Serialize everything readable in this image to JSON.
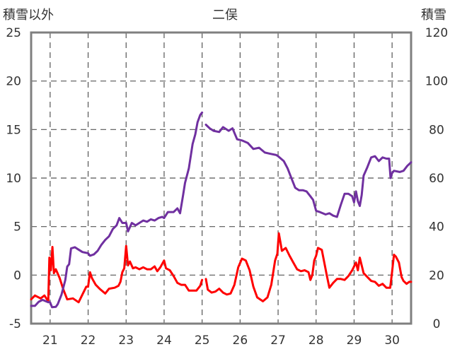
{
  "chart_data": {
    "type": "line",
    "title": "二俣",
    "ylabel_left": "積雪以外",
    "ylabel_right": "積雪",
    "x_ticks": [
      21,
      22,
      23,
      24,
      25,
      26,
      27,
      28,
      29,
      30
    ],
    "x_range": [
      20.5,
      30.5
    ],
    "y_left_range": [
      -5,
      25
    ],
    "y_left_ticks": [
      -5,
      0,
      5,
      10,
      15,
      20,
      25
    ],
    "y_right_range": [
      0,
      120
    ],
    "y_right_ticks": [
      0,
      20,
      40,
      60,
      80,
      100,
      120
    ],
    "grid": "dashed vertical at each day, dashed horizontal at 5-unit steps",
    "series": [
      {
        "axis": "left",
        "color": "#ff0000",
        "points": [
          [
            20.5,
            -2.5
          ],
          [
            20.6,
            -2.1
          ],
          [
            20.75,
            -2.4
          ],
          [
            20.85,
            -2.1
          ],
          [
            20.95,
            -2.7
          ],
          [
            20.98,
            1.8
          ],
          [
            21.02,
            0.5
          ],
          [
            21.06,
            2.9
          ],
          [
            21.1,
            0.2
          ],
          [
            21.15,
            0.6
          ],
          [
            21.25,
            -0.3
          ],
          [
            21.35,
            -1.5
          ],
          [
            21.45,
            -2.5
          ],
          [
            21.6,
            -2.4
          ],
          [
            21.75,
            -2.8
          ],
          [
            21.85,
            -2.0
          ],
          [
            21.95,
            -1.2
          ],
          [
            22.0,
            -1.2
          ],
          [
            22.05,
            0.3
          ],
          [
            22.1,
            -0.3
          ],
          [
            22.2,
            -1.0
          ],
          [
            22.3,
            -1.4
          ],
          [
            22.45,
            -1.9
          ],
          [
            22.55,
            -1.4
          ],
          [
            22.7,
            -1.3
          ],
          [
            22.8,
            -1.1
          ],
          [
            22.85,
            -0.7
          ],
          [
            22.9,
            0.3
          ],
          [
            22.95,
            0.7
          ],
          [
            23.0,
            3.0
          ],
          [
            23.05,
            1.0
          ],
          [
            23.1,
            1.4
          ],
          [
            23.18,
            0.7
          ],
          [
            23.25,
            0.8
          ],
          [
            23.35,
            0.6
          ],
          [
            23.45,
            0.8
          ],
          [
            23.55,
            0.6
          ],
          [
            23.65,
            0.6
          ],
          [
            23.75,
            0.9
          ],
          [
            23.82,
            0.4
          ],
          [
            23.9,
            0.8
          ],
          [
            24.0,
            1.5
          ],
          [
            24.05,
            0.7
          ],
          [
            24.15,
            0.5
          ],
          [
            24.25,
            -0.1
          ],
          [
            24.35,
            -0.8
          ],
          [
            24.45,
            -1.0
          ],
          [
            24.55,
            -1.0
          ],
          [
            24.65,
            -1.6
          ],
          [
            24.75,
            -1.6
          ],
          [
            24.85,
            -1.6
          ],
          [
            24.95,
            -1.1
          ],
          [
            25.0,
            -0.5
          ],
          null,
          [
            25.1,
            -0.4
          ],
          [
            25.15,
            -1.5
          ],
          [
            25.25,
            -1.8
          ],
          [
            25.35,
            -1.7
          ],
          [
            25.45,
            -1.4
          ],
          [
            25.55,
            -1.8
          ],
          [
            25.65,
            -2.0
          ],
          [
            25.75,
            -1.9
          ],
          [
            25.85,
            -1.0
          ],
          [
            25.95,
            0.8
          ],
          [
            26.05,
            1.7
          ],
          [
            26.15,
            1.5
          ],
          [
            26.25,
            0.5
          ],
          [
            26.35,
            -1.2
          ],
          [
            26.45,
            -2.3
          ],
          [
            26.6,
            -2.7
          ],
          [
            26.72,
            -2.3
          ],
          [
            26.82,
            -1.0
          ],
          [
            26.92,
            1.5
          ],
          [
            26.98,
            2.2
          ],
          [
            27.02,
            4.3
          ],
          [
            27.06,
            3.4
          ],
          [
            27.1,
            2.5
          ],
          [
            27.2,
            2.8
          ],
          [
            27.3,
            2.0
          ],
          [
            27.4,
            1.3
          ],
          [
            27.5,
            0.6
          ],
          [
            27.6,
            0.4
          ],
          [
            27.7,
            0.5
          ],
          [
            27.8,
            0.3
          ],
          [
            27.85,
            -0.5
          ],
          [
            27.9,
            0.0
          ],
          [
            27.95,
            1.5
          ],
          [
            28.0,
            2.0
          ],
          [
            28.05,
            2.8
          ],
          [
            28.15,
            2.6
          ],
          [
            28.22,
            1.2
          ],
          [
            28.28,
            0.0
          ],
          [
            28.35,
            -1.3
          ],
          [
            28.45,
            -0.8
          ],
          [
            28.55,
            -0.4
          ],
          [
            28.65,
            -0.4
          ],
          [
            28.75,
            -0.5
          ],
          [
            28.85,
            -0.1
          ],
          [
            28.95,
            0.5
          ],
          [
            29.05,
            1.3
          ],
          [
            29.1,
            0.5
          ],
          [
            29.15,
            1.8
          ],
          [
            29.25,
            0.2
          ],
          [
            29.35,
            -0.2
          ],
          [
            29.45,
            -0.6
          ],
          [
            29.55,
            -0.7
          ],
          [
            29.65,
            -1.1
          ],
          [
            29.75,
            -0.9
          ],
          [
            29.85,
            -1.3
          ],
          [
            29.95,
            -1.3
          ],
          [
            30.0,
            0.3
          ],
          [
            30.05,
            2.1
          ],
          [
            30.1,
            1.9
          ],
          [
            30.18,
            1.3
          ],
          [
            30.25,
            -0.2
          ],
          [
            30.3,
            -0.6
          ],
          [
            30.38,
            -0.9
          ],
          [
            30.45,
            -0.7
          ],
          [
            30.5,
            -0.7
          ]
        ]
      },
      {
        "axis": "right",
        "color": "#7030a0",
        "points": [
          [
            20.5,
            7.3
          ],
          [
            20.6,
            7.3
          ],
          [
            20.7,
            9.0
          ],
          [
            20.8,
            9.8
          ],
          [
            20.95,
            8.8
          ],
          [
            21.0,
            8.8
          ],
          [
            21.05,
            6.8
          ],
          [
            21.15,
            6.9
          ],
          [
            21.2,
            8.0
          ],
          [
            21.3,
            12.0
          ],
          [
            21.4,
            18.0
          ],
          [
            21.45,
            23.5
          ],
          [
            21.5,
            24.5
          ],
          [
            21.55,
            31.0
          ],
          [
            21.65,
            31.5
          ],
          [
            21.75,
            30.5
          ],
          [
            21.85,
            29.5
          ],
          [
            22.0,
            29.0
          ],
          [
            22.05,
            28.0
          ],
          [
            22.15,
            28.5
          ],
          [
            22.25,
            30.0
          ],
          [
            22.35,
            32.5
          ],
          [
            22.45,
            34.5
          ],
          [
            22.55,
            36.0
          ],
          [
            22.65,
            39.0
          ],
          [
            22.75,
            40.5
          ],
          [
            22.82,
            43.5
          ],
          [
            22.9,
            41.5
          ],
          [
            23.0,
            41.5
          ],
          [
            23.05,
            38.0
          ],
          [
            23.15,
            41.5
          ],
          [
            23.25,
            40.5
          ],
          [
            23.35,
            41.5
          ],
          [
            23.45,
            42.5
          ],
          [
            23.55,
            42.0
          ],
          [
            23.65,
            43.0
          ],
          [
            23.75,
            42.5
          ],
          [
            23.85,
            43.5
          ],
          [
            23.95,
            44.0
          ],
          [
            24.0,
            43.5
          ],
          [
            24.1,
            46.0
          ],
          [
            24.25,
            46.0
          ],
          [
            24.35,
            47.5
          ],
          [
            24.42,
            45.5
          ],
          [
            24.5,
            53.0
          ],
          [
            24.55,
            58.0
          ],
          [
            24.65,
            64.0
          ],
          [
            24.75,
            74.0
          ],
          [
            24.82,
            78.0
          ],
          [
            24.88,
            83.0
          ],
          [
            24.95,
            86.0
          ],
          [
            25.0,
            87.0
          ],
          null,
          [
            25.1,
            82.0
          ],
          [
            25.2,
            80.5
          ],
          [
            25.3,
            79.5
          ],
          [
            25.45,
            79.0
          ],
          [
            25.55,
            81.0
          ],
          [
            25.7,
            79.5
          ],
          [
            25.8,
            80.5
          ],
          [
            25.92,
            76.0
          ],
          [
            26.05,
            75.5
          ],
          [
            26.2,
            74.5
          ],
          [
            26.35,
            72.0
          ],
          [
            26.5,
            72.5
          ],
          [
            26.65,
            70.5
          ],
          [
            26.8,
            70.0
          ],
          [
            26.95,
            69.5
          ],
          [
            27.0,
            69.0
          ],
          [
            27.15,
            67.0
          ],
          [
            27.25,
            64.0
          ],
          [
            27.35,
            60.0
          ],
          [
            27.45,
            56.0
          ],
          [
            27.55,
            55.0
          ],
          [
            27.65,
            55.0
          ],
          [
            27.75,
            54.5
          ],
          [
            27.85,
            52.5
          ],
          [
            27.92,
            51.0
          ],
          [
            28.0,
            46.5
          ],
          [
            28.1,
            46.0
          ],
          [
            28.25,
            45.0
          ],
          [
            28.35,
            45.5
          ],
          [
            28.45,
            44.5
          ],
          [
            28.55,
            44.0
          ],
          [
            28.65,
            49.0
          ],
          [
            28.75,
            53.5
          ],
          [
            28.85,
            53.5
          ],
          [
            28.95,
            52.5
          ],
          [
            29.0,
            50.0
          ],
          [
            29.05,
            54.5
          ],
          [
            29.1,
            50.5
          ],
          [
            29.15,
            48.5
          ],
          [
            29.2,
            53.0
          ],
          [
            29.25,
            61.0
          ],
          [
            29.35,
            64.5
          ],
          [
            29.45,
            68.5
          ],
          [
            29.55,
            69.0
          ],
          [
            29.65,
            67.0
          ],
          [
            29.75,
            68.5
          ],
          [
            29.85,
            68.0
          ],
          [
            29.92,
            68.0
          ],
          [
            29.96,
            60.0
          ],
          [
            30.0,
            62.0
          ],
          [
            30.05,
            63.0
          ],
          [
            30.2,
            62.5
          ],
          [
            30.3,
            63.0
          ],
          [
            30.4,
            65.0
          ],
          [
            30.5,
            66.5
          ]
        ]
      }
    ]
  }
}
